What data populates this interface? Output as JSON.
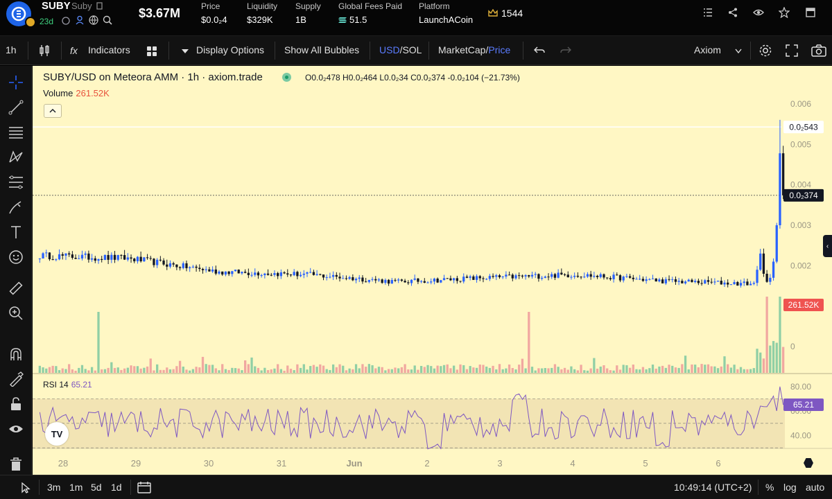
{
  "token": {
    "symbol": "SUBY",
    "name": "Suby",
    "age": "23d",
    "market_cap": "$3.67M",
    "stats": [
      {
        "label": "Price",
        "value": "$0.0₂4"
      },
      {
        "label": "Liquidity",
        "value": "$329K"
      },
      {
        "label": "Supply",
        "value": "1B"
      },
      {
        "label": "Global Fees Paid",
        "value": "51.5",
        "icon": "solana-icon"
      },
      {
        "label": "Platform",
        "value": "LaunchACoin"
      }
    ],
    "crown_count": "1544",
    "header_icons": [
      "list-icon",
      "share-icon",
      "eye-icon",
      "star-icon",
      "window-icon"
    ]
  },
  "toolbar": {
    "interval": "1h",
    "indicators": "Indicators",
    "display_options": "Display Options",
    "show_bubbles": "Show All Bubbles",
    "usd": "USD",
    "sol": "SOL",
    "marketcap": "MarketCap",
    "price": "Price",
    "slash": "/",
    "provider": "Axiom"
  },
  "chart": {
    "title": "SUBY/USD on Meteora AMM · 1h · axiom.trade",
    "ohlc": "O0.0₂478 H0.0₂464 L0.0₂34 C0.0₂374 -0.0₂104 (−21.73%)",
    "volume_label": "Volume",
    "volume_value": "261.52K",
    "price_axis_labels": [
      "0.006",
      "0.005",
      "0.004",
      "0.003",
      "0.002",
      "0"
    ],
    "high_tag": "0.0₂543",
    "last_tag": "0.0₂374",
    "volume_tag": "261.52K",
    "rsi_label": "RSI 14",
    "rsi_value": "65.21",
    "rsi_axis_labels": [
      "80.00",
      "60.00",
      "40.00"
    ],
    "rsi_tag": "65.21",
    "time_labels": [
      "28",
      "29",
      "30",
      "31",
      "Jun",
      "2",
      "3",
      "4",
      "5",
      "6"
    ],
    "tv_logo": "TV",
    "colors": {
      "up": "#2962ff",
      "down": "#131722",
      "vol_up": "#7cc8a0",
      "vol_down": "#ef9a9a",
      "rsi": "#7e57c2",
      "background": "#fff7c4"
    }
  },
  "chart_data": {
    "type": "line",
    "title": "SUBY/USD on Meteora AMM · 1h · axiom.trade",
    "x": [
      "28",
      "29",
      "30",
      "31",
      "Jun",
      "2",
      "3",
      "4",
      "5",
      "6"
    ],
    "series": [
      {
        "values": [
          0.00225,
          0.00218,
          0.00185,
          0.00178,
          0.0016,
          0.0017,
          0.00178,
          0.00162,
          0.00155,
          0.00374
        ]
      }
    ],
    "price_high": 0.00543,
    "price_last": 0.00374,
    "ylim": [
      0,
      0.006
    ],
    "rsi": {
      "period": 14,
      "last": 65.21,
      "levels": [
        70,
        30
      ]
    },
    "volume_last": "261.52K"
  },
  "bottombar": {
    "ranges": [
      "3m",
      "1m",
      "5d",
      "1d"
    ],
    "time": "10:49:14 (UTC+2)",
    "percent": "%",
    "log": "log",
    "auto": "auto"
  }
}
